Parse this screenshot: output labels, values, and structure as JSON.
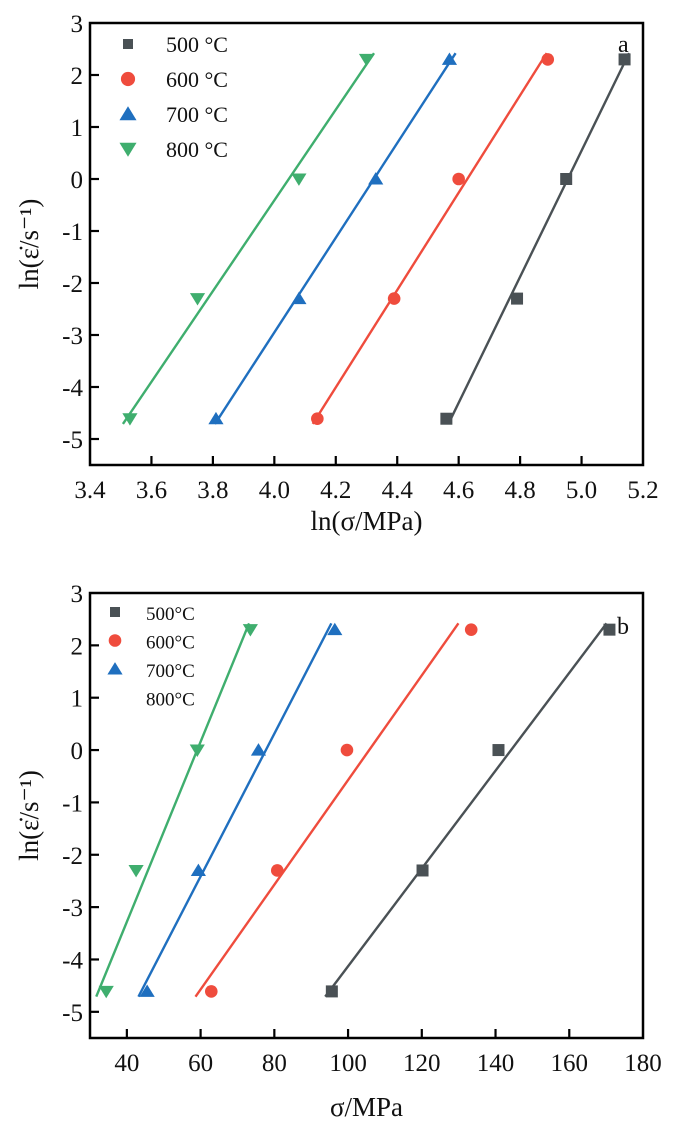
{
  "colors": {
    "500": "#4a5155",
    "600": "#ef4c3d",
    "700": "#1f6fbf",
    "800": "#3fae6e"
  },
  "chart_data": [
    {
      "type": "scatter",
      "panel_label": "a",
      "xlabel": "ln(σ/MPa)",
      "ylabel": "ln(ε̇/s⁻¹)",
      "xlim": [
        3.4,
        5.2
      ],
      "ylim": [
        -5.5,
        3
      ],
      "xticks": [
        3.4,
        3.6,
        3.8,
        4.0,
        4.2,
        4.4,
        4.6,
        4.8,
        5.0,
        5.2
      ],
      "xtick_labels": [
        "3.4",
        "3.6",
        "3.8",
        "4.0",
        "4.2",
        "4.4",
        "4.6",
        "4.8",
        "5.0",
        "5.2"
      ],
      "yticks": [
        -5,
        -4,
        -3,
        -2,
        -1,
        0,
        1,
        2,
        3
      ],
      "ytick_labels": [
        "-5",
        "-4",
        "-3",
        "-2",
        "-1",
        "0",
        "1",
        "2",
        "3"
      ],
      "grid": false,
      "legend_position": "top-left",
      "fit_lines": true,
      "series": [
        {
          "name": "500 °C",
          "key": "500",
          "marker": "square",
          "x": [
            4.56,
            4.79,
            4.95,
            5.14
          ],
          "y": [
            -4.61,
            -2.3,
            0.0,
            2.3
          ]
        },
        {
          "name": "600 °C",
          "key": "600",
          "marker": "circle",
          "x": [
            4.14,
            4.39,
            4.6,
            4.89
          ],
          "y": [
            -4.61,
            -2.3,
            0.0,
            2.3
          ]
        },
        {
          "name": "700 °C",
          "key": "700",
          "marker": "triangle-up",
          "x": [
            3.81,
            4.08,
            4.33,
            4.57
          ],
          "y": [
            -4.61,
            -2.3,
            0.0,
            2.3
          ]
        },
        {
          "name": "800 °C",
          "key": "800",
          "marker": "triangle-down",
          "x": [
            3.53,
            3.75,
            4.08,
            4.3
          ],
          "y": [
            -4.61,
            -2.3,
            0.0,
            2.3
          ]
        }
      ]
    },
    {
      "type": "scatter",
      "panel_label": "b",
      "xlabel": "σ/MPa",
      "ylabel": "ln(ε̇/s⁻¹)",
      "xlim": [
        30,
        180
      ],
      "ylim": [
        -5.5,
        3
      ],
      "xticks": [
        40,
        60,
        80,
        100,
        120,
        140,
        160,
        180
      ],
      "xtick_labels": [
        "40",
        "60",
        "80",
        "100",
        "120",
        "140",
        "160",
        "180"
      ],
      "yticks": [
        -5,
        -4,
        -3,
        -2,
        -1,
        0,
        1,
        2,
        3
      ],
      "ytick_labels": [
        "-5",
        "-4",
        "-3",
        "-2",
        "-1",
        "0",
        "1",
        "2",
        "3"
      ],
      "grid": false,
      "legend_position": "top-left",
      "fit_lines": true,
      "series": [
        {
          "name": "500°C",
          "key": "500",
          "marker": "square",
          "legend_marker": true,
          "x": [
            95.6,
            120.2,
            140.8,
            170.9
          ],
          "y": [
            -4.61,
            -2.3,
            0.0,
            2.3
          ]
        },
        {
          "name": "600°C",
          "key": "600",
          "marker": "circle",
          "legend_marker": true,
          "x": [
            62.9,
            80.8,
            99.7,
            133.4
          ],
          "y": [
            -4.61,
            -2.3,
            0.0,
            2.3
          ]
        },
        {
          "name": "700°C",
          "key": "700",
          "marker": "triangle-up",
          "legend_marker": true,
          "x": [
            45.5,
            59.4,
            75.7,
            96.4
          ],
          "y": [
            -4.61,
            -2.3,
            0.0,
            2.3
          ]
        },
        {
          "name": "800°C",
          "key": "800",
          "marker": "triangle-down",
          "legend_marker": false,
          "x": [
            34.4,
            42.5,
            59.1,
            73.5
          ],
          "y": [
            -4.61,
            -2.3,
            0.0,
            2.3
          ]
        }
      ]
    }
  ]
}
